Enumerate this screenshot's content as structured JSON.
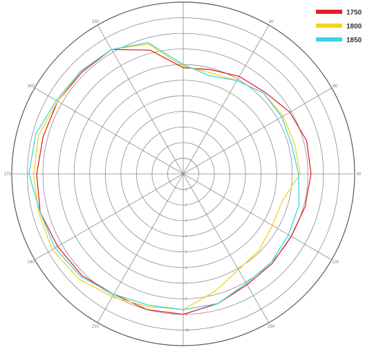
{
  "chart_data": {
    "type": "polar-line",
    "angular_axis": {
      "unit": "degrees",
      "direction": "clockwise",
      "zero_at": "top",
      "tick_step": 30,
      "tick_labels": [
        "0",
        "30",
        "60",
        "90",
        "120",
        "150",
        "180",
        "210",
        "240",
        "270",
        "300",
        "330"
      ]
    },
    "radial_axis": {
      "min": 0,
      "max": 11,
      "ring_count": 11,
      "tick_labels": [
        "1",
        "2",
        "3",
        "4",
        "5",
        "6",
        "7",
        "8",
        "9",
        "10"
      ]
    },
    "legend": {
      "position": "top-right"
    },
    "angles": [
      0,
      15,
      30,
      45,
      60,
      75,
      90,
      105,
      120,
      135,
      150,
      165,
      180,
      195,
      210,
      225,
      240,
      255,
      270,
      285,
      300,
      315,
      330,
      345
    ],
    "series": [
      {
        "name": "1750",
        "color": "#e0202a",
        "values": [
          6.8,
          6.9,
          7.2,
          7.4,
          7.9,
          8.2,
          8.2,
          8.1,
          8.0,
          8.1,
          8.2,
          8.6,
          9.0,
          9.0,
          8.9,
          9.2,
          9.3,
          9.5,
          9.4,
          9.3,
          9.3,
          9.2,
          9.2,
          8.2
        ]
      },
      {
        "name": "1800",
        "color": "#f2d41c",
        "values": [
          6.9,
          6.7,
          6.9,
          7.3,
          7.4,
          7.4,
          7.5,
          6.6,
          6.6,
          6.9,
          7.1,
          7.8,
          8.7,
          8.8,
          9.1,
          9.5,
          9.7,
          9.6,
          9.6,
          9.6,
          9.3,
          9.3,
          9.2,
          8.6
        ]
      },
      {
        "name": "1850",
        "color": "#3ad4e8",
        "values": [
          7.0,
          6.5,
          6.9,
          7.3,
          7.3,
          7.2,
          7.4,
          7.7,
          7.8,
          8.0,
          8.1,
          8.6,
          8.7,
          8.7,
          8.9,
          9.3,
          9.5,
          9.5,
          9.9,
          9.8,
          9.4,
          9.3,
          9.2,
          8.7
        ]
      }
    ]
  },
  "colors": {
    "grid": "#8a8a8a",
    "background": "#ffffff"
  }
}
